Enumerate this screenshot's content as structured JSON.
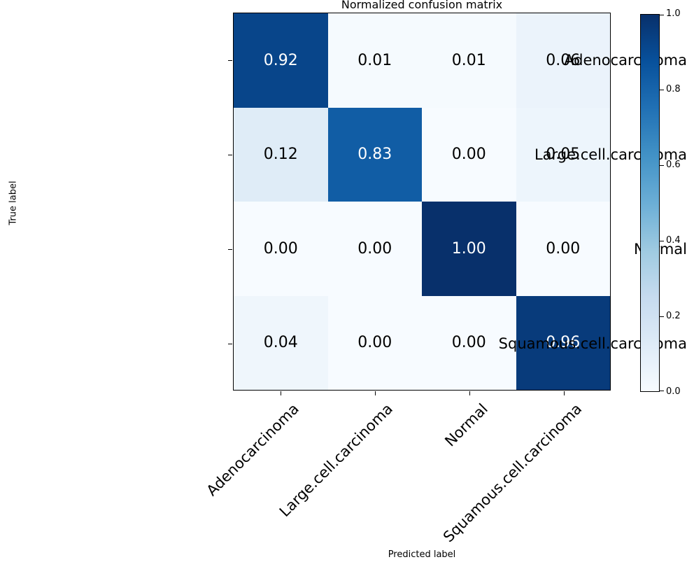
{
  "chart_data": {
    "type": "heatmap",
    "title": "Normalized confusion matrix",
    "xlabel": "Predicted label",
    "ylabel": "True label",
    "categories": [
      "Adenocarcinoma",
      "Large.cell.carcinoma",
      "Normal",
      "Squamous.cell.carcinoma"
    ],
    "x_categories": [
      "Adenocarcinoma",
      "Large.cell.carcinoma",
      "Normal",
      "Squamous.cell.carcinoma"
    ],
    "rows": [
      [
        0.92,
        0.01,
        0.01,
        0.06
      ],
      [
        0.12,
        0.83,
        0.0,
        0.05
      ],
      [
        0.0,
        0.0,
        1.0,
        0.0
      ],
      [
        0.04,
        0.0,
        0.0,
        0.96
      ]
    ],
    "cell_text": [
      [
        "0.92",
        "0.01",
        "0.01",
        "0.06"
      ],
      [
        "0.12",
        "0.83",
        "0.00",
        "0.05"
      ],
      [
        "0.00",
        "0.00",
        "1.00",
        "0.00"
      ],
      [
        "0.04",
        "0.00",
        "0.00",
        "0.96"
      ]
    ],
    "value_range": [
      0.0,
      1.0
    ],
    "grid": false,
    "colormap": {
      "name": "Blues",
      "anchors": [
        "#f7fbff",
        "#deebf7",
        "#c6dbef",
        "#9ecae1",
        "#6baed6",
        "#4292c6",
        "#2171b5",
        "#08519c",
        "#08306b"
      ]
    },
    "text_threshold": 0.5,
    "text_colors": {
      "high": "#ffffff",
      "low": "#000000"
    },
    "colorbar": {
      "position": "right",
      "tick_labels": [
        "1.0",
        "0.8",
        "0.6",
        "0.4",
        "0.2",
        "0.0"
      ],
      "tick_values": [
        1.0,
        0.8,
        0.6,
        0.4,
        0.2,
        0.0
      ]
    }
  }
}
